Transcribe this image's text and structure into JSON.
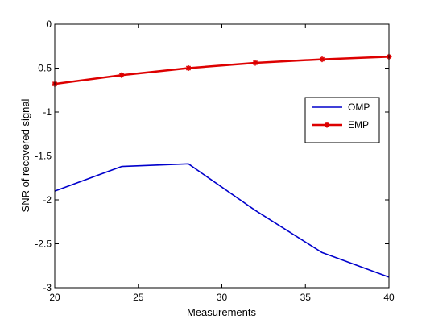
{
  "chart_data": {
    "type": "line",
    "xlabel": "Measurements",
    "ylabel": "SNR of recovered signal",
    "xlim": [
      20,
      40
    ],
    "ylim": [
      -3,
      0
    ],
    "xticks": [
      20,
      25,
      30,
      35,
      40
    ],
    "yticks": [
      0,
      -0.5,
      -1,
      -1.5,
      -2,
      -2.5,
      -3
    ],
    "xtick_labels": [
      "20",
      "25",
      "30",
      "35",
      "40"
    ],
    "ytick_labels": [
      "0",
      "-0.5",
      "-1",
      "-1.5",
      "-2",
      "-2.5",
      "-3"
    ],
    "grid": false,
    "legend_position": "right",
    "x": [
      20,
      24,
      28,
      32,
      36,
      40
    ],
    "series": [
      {
        "name": "OMP",
        "color": "#0000cc",
        "marker": "none",
        "values": [
          -1.9,
          -1.62,
          -1.59,
          -2.12,
          -2.6,
          -2.88
        ]
      },
      {
        "name": "EMP",
        "color": "#dd0000",
        "marker": "star",
        "values": [
          -0.68,
          -0.58,
          -0.5,
          -0.44,
          -0.4,
          -0.37
        ]
      }
    ]
  }
}
